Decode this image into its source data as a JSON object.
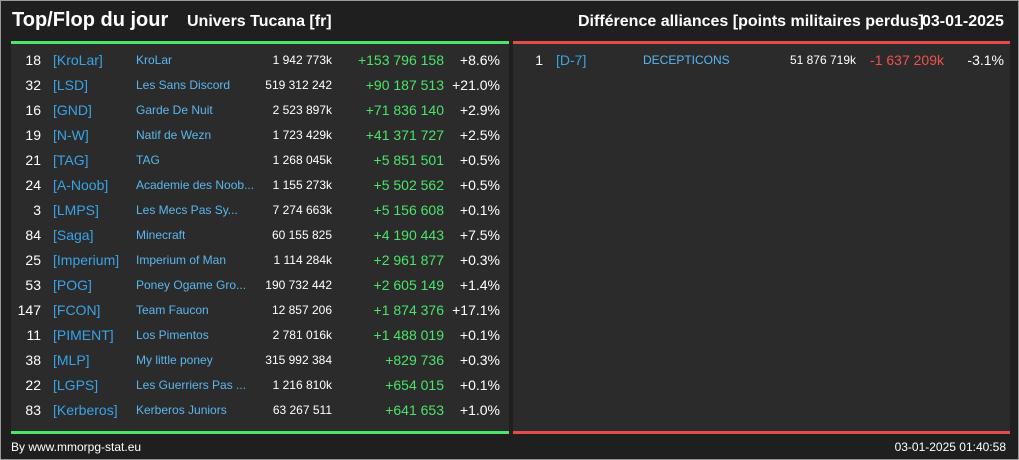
{
  "header": {
    "title": "Top/Flop du jour",
    "universe": "Univers Tucana [fr]",
    "right_title": "Différence alliances [points militaires perdus]",
    "date": "03-01-2025"
  },
  "top": [
    {
      "rank": "18",
      "tag": "[KroLar]",
      "name": "KroLar",
      "points": "1 942 773k",
      "diff": "+153 796 158",
      "pct": "+8.6%"
    },
    {
      "rank": "32",
      "tag": "[LSD]",
      "name": "Les Sans Discord",
      "points": "519 312 242",
      "diff": "+90 187 513",
      "pct": "+21.0%"
    },
    {
      "rank": "16",
      "tag": "[GND]",
      "name": "Garde De Nuit",
      "points": "2 523 897k",
      "diff": "+71 836 140",
      "pct": "+2.9%"
    },
    {
      "rank": "19",
      "tag": "[N-W]",
      "name": "Natif de Wezn",
      "points": "1 723 429k",
      "diff": "+41 371 727",
      "pct": "+2.5%"
    },
    {
      "rank": "21",
      "tag": "[TAG]",
      "name": "TAG",
      "points": "1 268 045k",
      "diff": "+5 851 501",
      "pct": "+0.5%"
    },
    {
      "rank": "24",
      "tag": "[A-Noob]",
      "name": "Academie des Noob...",
      "points": "1 155 273k",
      "diff": "+5 502 562",
      "pct": "+0.5%"
    },
    {
      "rank": "3",
      "tag": "[LMPS]",
      "name": "Les Mecs Pas Sy...",
      "points": "7 274 663k",
      "diff": "+5 156 608",
      "pct": "+0.1%"
    },
    {
      "rank": "84",
      "tag": "[Saga]",
      "name": "Minecraft",
      "points": "60 155 825",
      "diff": "+4 190 443",
      "pct": "+7.5%"
    },
    {
      "rank": "25",
      "tag": "[Imperium]",
      "name": "Imperium of Man",
      "points": "1 114 284k",
      "diff": "+2 961 877",
      "pct": "+0.3%"
    },
    {
      "rank": "53",
      "tag": "[POG]",
      "name": "Poney Ogame Gro...",
      "points": "190 732 442",
      "diff": "+2 605 149",
      "pct": "+1.4%"
    },
    {
      "rank": "147",
      "tag": "[FCON]",
      "name": "Team Faucon",
      "points": "12 857 206",
      "diff": "+1 874 376",
      "pct": "+17.1%"
    },
    {
      "rank": "11",
      "tag": "[PIMENT]",
      "name": "Los Pimentos",
      "points": "2 781 016k",
      "diff": "+1 488 019",
      "pct": "+0.1%"
    },
    {
      "rank": "38",
      "tag": "[MLP]",
      "name": "My little poney",
      "points": "315 992 384",
      "diff": "+829 736",
      "pct": "+0.3%"
    },
    {
      "rank": "22",
      "tag": "[LGPS]",
      "name": "Les Guerriers Pas ...",
      "points": "1 216 810k",
      "diff": "+654 015",
      "pct": "+0.1%"
    },
    {
      "rank": "83",
      "tag": "[Kerberos]",
      "name": "Kerberos Juniors",
      "points": "63 267 511",
      "diff": "+641 653",
      "pct": "+1.0%"
    }
  ],
  "flop": [
    {
      "rank": "1",
      "tag": "[D-7]",
      "name": "DECEPTICONS",
      "points": "51 876 719k",
      "diff": "-1 637 209k",
      "pct": "-3.1%"
    }
  ],
  "footer": {
    "source": "By www.mmorpg-stat.eu",
    "timestamp": "03-01-2025 01:40:58"
  },
  "colors": {
    "top_accent": "#4be36a",
    "flop_accent": "#e24d4b",
    "tag": "#3aa3e6"
  }
}
